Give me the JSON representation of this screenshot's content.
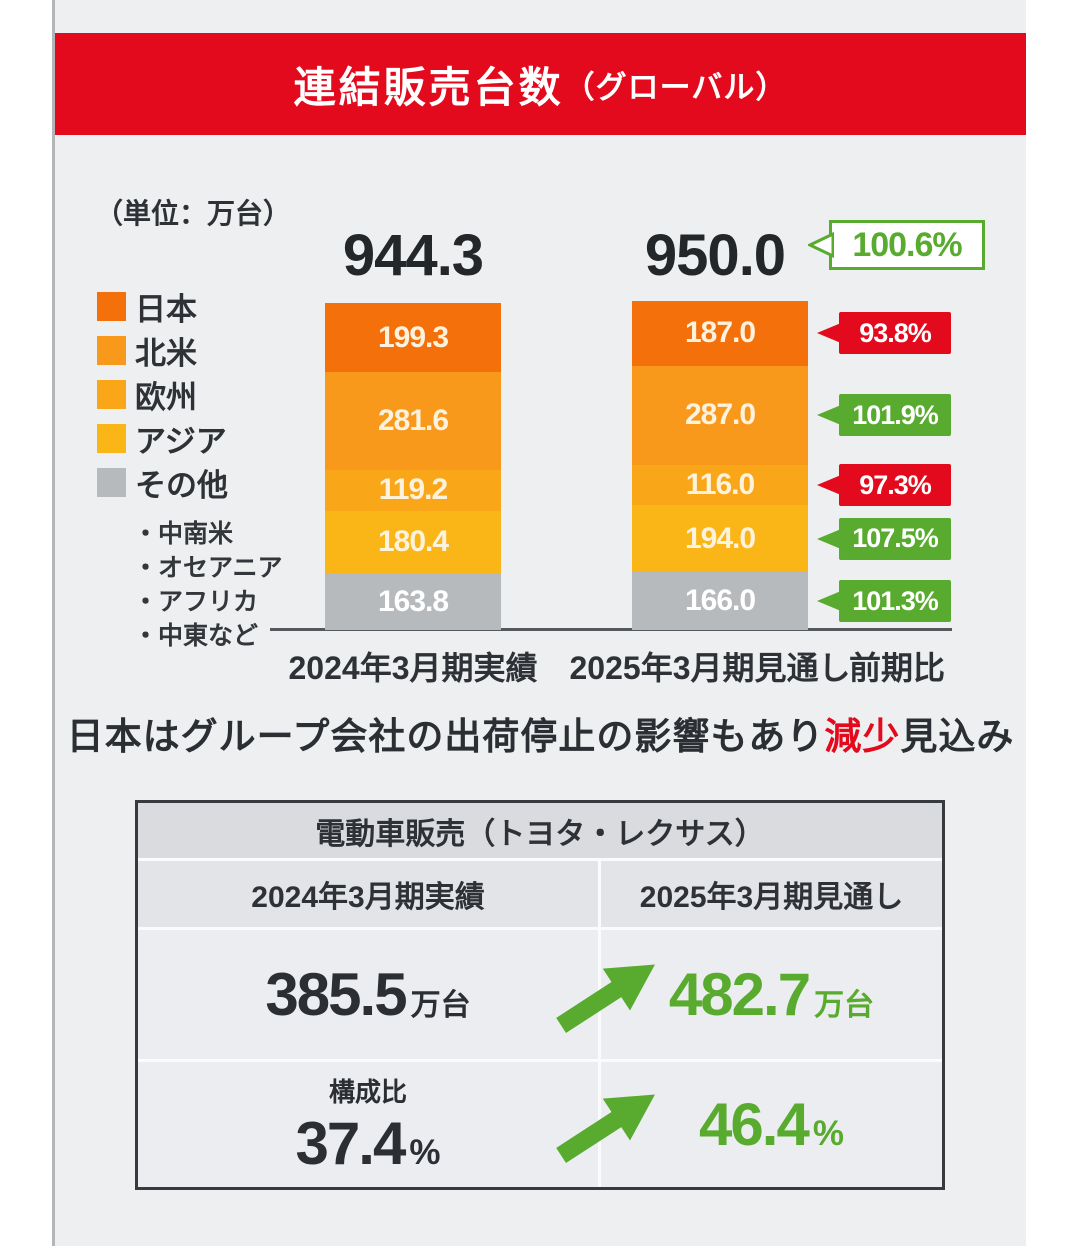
{
  "header": {
    "title_main": "連結販売台数",
    "title_paren": "（グローバル）"
  },
  "unit_note": "（単位：万台）",
  "chart_data": {
    "type": "bar",
    "stacked": true,
    "unit": "万台",
    "categories": [
      "2024年3月期実績",
      "2025年3月期見通し"
    ],
    "totals": [
      "944.3",
      "950.0"
    ],
    "total_yoy": "100.6%",
    "yoy_label": "前期比",
    "segments": [
      {
        "name": "日本",
        "color": "#f4700a",
        "text_color": "#fdf2dd",
        "values": [
          "199.3",
          "187.0"
        ],
        "yoy": "93.8%",
        "yoy_up": false
      },
      {
        "name": "北米",
        "color": "#f8991b",
        "text_color": "#fdf2dd",
        "values": [
          "281.6",
          "287.0"
        ],
        "yoy": "101.9%",
        "yoy_up": true
      },
      {
        "name": "欧州",
        "color": "#f9a718",
        "text_color": "#fdf2dd",
        "values": [
          "119.2",
          "116.0"
        ],
        "yoy": "97.3%",
        "yoy_up": false
      },
      {
        "name": "アジア",
        "color": "#fab617",
        "text_color": "#fdf2dd",
        "values": [
          "180.4",
          "194.0"
        ],
        "yoy": "107.5%",
        "yoy_up": true
      },
      {
        "name": "その他",
        "color": "#b7babd",
        "text_color": "#ffffff",
        "values": [
          "163.8",
          "166.0"
        ],
        "yoy": "101.3%",
        "yoy_up": true
      }
    ],
    "legend_sub_items": [
      "・中南米",
      "・オセアニア",
      "・アフリカ",
      "・中東など"
    ]
  },
  "statement": {
    "pre": "日本はグループ会社の出荷停止の影響もあり",
    "highlight": "減少",
    "post": "見込み"
  },
  "ev_table": {
    "title": "電動車販売（トヨタ・レクサス）",
    "columns": [
      "2024年3月期実績",
      "2025年3月期見通し"
    ],
    "volume_row": {
      "before": "385.5",
      "before_unit": "万台",
      "after": "482.7",
      "after_unit": "万台"
    },
    "share_row": {
      "label": "構成比",
      "before": "37.4",
      "before_unit": "%",
      "after": "46.4",
      "after_unit": "%"
    }
  },
  "colors": {
    "red": "#e20a1c",
    "green": "#58ab2e",
    "bg": "#edeff1"
  }
}
